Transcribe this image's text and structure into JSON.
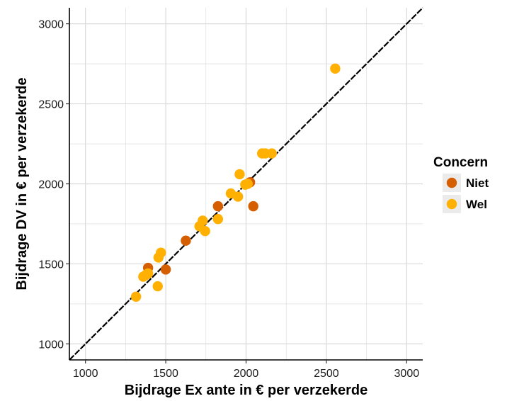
{
  "chart_data": {
    "type": "scatter",
    "title": "",
    "xlabel": "Bijdrage Ex ante in  €  per verzekerde",
    "ylabel": "Bijdrage DV in  €  per verzekerde",
    "xlim": [
      900,
      3100
    ],
    "ylim": [
      900,
      3100
    ],
    "x_ticks": [
      "1000",
      "1500",
      "2000",
      "2500",
      "3000"
    ],
    "y_ticks": [
      "1000",
      "1500",
      "2000",
      "2500",
      "3000"
    ],
    "grid": true,
    "reference_line": "y = x (dashed)",
    "legend": {
      "title": "Concern",
      "position": "right"
    },
    "series": [
      {
        "name": "Niet",
        "color": "#D55E00",
        "points": [
          {
            "x": 1390,
            "y": 1475
          },
          {
            "x": 1500,
            "y": 1465
          },
          {
            "x": 1625,
            "y": 1645
          },
          {
            "x": 1825,
            "y": 1860
          },
          {
            "x": 2025,
            "y": 2010
          },
          {
            "x": 2045,
            "y": 1860
          }
        ]
      },
      {
        "name": "Wel",
        "color": "#FFB000",
        "points": [
          {
            "x": 1315,
            "y": 1295
          },
          {
            "x": 1360,
            "y": 1420
          },
          {
            "x": 1375,
            "y": 1430
          },
          {
            "x": 1390,
            "y": 1440
          },
          {
            "x": 1450,
            "y": 1360
          },
          {
            "x": 1455,
            "y": 1540
          },
          {
            "x": 1470,
            "y": 1570
          },
          {
            "x": 1710,
            "y": 1735
          },
          {
            "x": 1730,
            "y": 1770
          },
          {
            "x": 1745,
            "y": 1705
          },
          {
            "x": 1825,
            "y": 1780
          },
          {
            "x": 1905,
            "y": 1940
          },
          {
            "x": 1950,
            "y": 1920
          },
          {
            "x": 1960,
            "y": 2060
          },
          {
            "x": 1995,
            "y": 1995
          },
          {
            "x": 2010,
            "y": 2000
          },
          {
            "x": 2100,
            "y": 2190
          },
          {
            "x": 2120,
            "y": 2190
          },
          {
            "x": 2160,
            "y": 2190
          },
          {
            "x": 2555,
            "y": 2720
          }
        ]
      }
    ]
  }
}
